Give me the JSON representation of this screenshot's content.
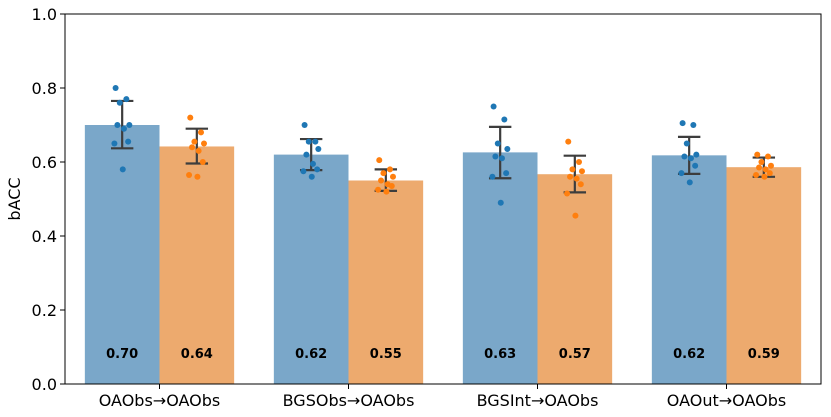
{
  "chart_data": {
    "type": "bar",
    "title": "",
    "xlabel": "",
    "ylabel": "bACC",
    "ylim": [
      0.0,
      1.0
    ],
    "yticks": [
      "0.0",
      "0.2",
      "0.4",
      "0.6",
      "0.8",
      "1.0"
    ],
    "grid": false,
    "legend": "none",
    "categories": [
      "OAObs→OAObs",
      "BGSObs→OAObs",
      "BGSInt→OAObs",
      "OAOut→OAObs"
    ],
    "series": [
      {
        "color": "#7aa7c9",
        "point_color": "#1f77b4",
        "values": [
          0.7,
          0.62,
          0.626,
          0.618
        ],
        "labels": [
          "0.70",
          "0.62",
          "0.63",
          "0.62"
        ],
        "error": [
          [
            0.637,
            0.765
          ],
          [
            0.578,
            0.662
          ],
          [
            0.556,
            0.695
          ],
          [
            0.568,
            0.668
          ]
        ],
        "points": [
          [
            0.8,
            0.77,
            0.76,
            0.7,
            0.7,
            0.69,
            0.655,
            0.65,
            0.58
          ],
          [
            0.7,
            0.655,
            0.655,
            0.635,
            0.62,
            0.595,
            0.58,
            0.575,
            0.56
          ],
          [
            0.75,
            0.715,
            0.65,
            0.635,
            0.615,
            0.61,
            0.57,
            0.56,
            0.49
          ],
          [
            0.705,
            0.7,
            0.65,
            0.62,
            0.615,
            0.61,
            0.59,
            0.57,
            0.545
          ]
        ]
      },
      {
        "color": "#edaa6e",
        "point_color": "#ff7f0e",
        "values": [
          0.642,
          0.55,
          0.567,
          0.586
        ],
        "labels": [
          "0.64",
          "0.55",
          "0.57",
          "0.59"
        ],
        "error": [
          [
            0.596,
            0.69
          ],
          [
            0.522,
            0.58
          ],
          [
            0.518,
            0.617
          ],
          [
            0.56,
            0.612
          ]
        ],
        "points": [
          [
            0.72,
            0.68,
            0.655,
            0.65,
            0.64,
            0.63,
            0.6,
            0.565,
            0.56
          ],
          [
            0.605,
            0.58,
            0.57,
            0.56,
            0.55,
            0.54,
            0.535,
            0.525,
            0.52
          ],
          [
            0.655,
            0.6,
            0.58,
            0.575,
            0.56,
            0.555,
            0.54,
            0.515,
            0.455
          ],
          [
            0.62,
            0.615,
            0.6,
            0.59,
            0.585,
            0.58,
            0.57,
            0.565,
            0.56
          ]
        ]
      }
    ]
  }
}
